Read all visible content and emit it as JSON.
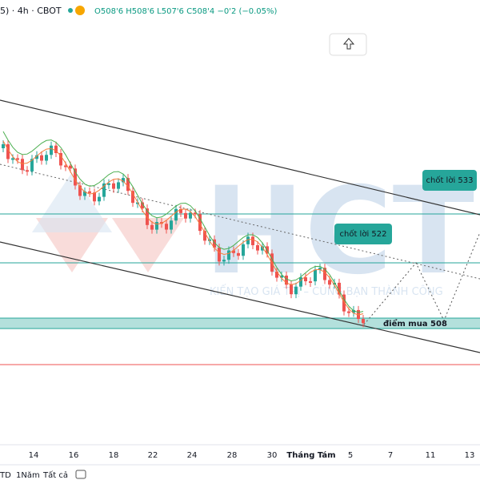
{
  "header": {
    "symbol": "5) · 4h · CBOT",
    "ohlc": "O508'6 H508'6 L507'6 C508'4 −0'2 (−0.05%)"
  },
  "annotations": {
    "target_high": "chốt lời 533",
    "target_low": "chốt lời 522",
    "buy_point": "điểm mua 508"
  },
  "watermark": {
    "logo": "HCT",
    "slogan": "KIẾN TẠO GIÁ TRỊ – CÙNG BẠN THÀNH CÔNG"
  },
  "x_axis": {
    "labels": [
      "14",
      "16",
      "18",
      "22",
      "24",
      "28",
      "30",
      "Tháng Tám",
      "5",
      "7",
      "11",
      "13"
    ]
  },
  "toolbar": {
    "ranges": [
      "TD",
      "1Năm",
      "Tất cả"
    ]
  }
}
